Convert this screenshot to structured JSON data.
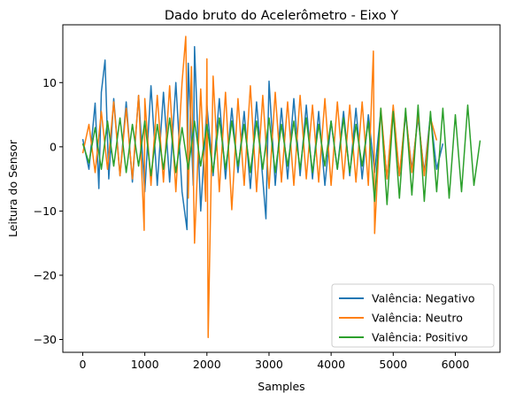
{
  "chart_data": {
    "type": "line",
    "title": "Dado bruto do Acelerômetro - Eixo Y",
    "xlabel": "Samples",
    "ylabel": "Leitura do Sensor",
    "xlim": [
      -320,
      6720
    ],
    "ylim": [
      -32,
      19
    ],
    "xticks": [
      0,
      1000,
      2000,
      3000,
      4000,
      5000,
      6000
    ],
    "yticks": [
      10,
      0,
      -10,
      -20,
      -30
    ],
    "ytick_labels": [
      "10",
      "0",
      "−10",
      "−20",
      "−30"
    ],
    "grid": false,
    "legend_position": "lower-right",
    "series": [
      {
        "name": "Valência: Negativo",
        "color": "#1f77b4",
        "x": [
          0,
          100,
          200,
          260,
          300,
          360,
          420,
          500,
          600,
          700,
          800,
          900,
          1000,
          1100,
          1200,
          1300,
          1400,
          1500,
          1600,
          1680,
          1700,
          1780,
          1800,
          1900,
          2000,
          2100,
          2200,
          2300,
          2400,
          2500,
          2600,
          2700,
          2800,
          2900,
          2950,
          3000,
          3100,
          3200,
          3300,
          3400,
          3500,
          3600,
          3700,
          3800,
          3900,
          4000,
          4100,
          4200,
          4300,
          4400,
          4500,
          4600,
          4700,
          4800,
          4900,
          5000,
          5100,
          5200,
          5300,
          5400,
          5500,
          5600,
          5700,
          5800
        ],
        "y": [
          1.2,
          -3.5,
          6.8,
          -6.5,
          8.5,
          13.5,
          -5,
          7.5,
          -4.5,
          7,
          -5.5,
          8,
          -7,
          9.5,
          -6,
          8.5,
          -5.5,
          10,
          -7,
          -12.9,
          13,
          -6,
          15.6,
          -10,
          6.5,
          -4.5,
          7.5,
          -5,
          6,
          -4,
          5.5,
          -6.5,
          7,
          -5,
          -11.2,
          10.2,
          -6,
          6,
          -5,
          7.5,
          -4.5,
          6.5,
          -5,
          5.5,
          -6,
          4,
          -3.5,
          5.5,
          -4.5,
          6,
          -5,
          5,
          -4,
          5.5,
          -5,
          6,
          -4.5,
          5,
          -3.5,
          4.5,
          -4,
          5,
          -3.5,
          0.5
        ]
      },
      {
        "name": "Valência: Neutro",
        "color": "#ff7f0e",
        "x": [
          0,
          100,
          200,
          300,
          400,
          500,
          600,
          700,
          800,
          900,
          990,
          1000,
          1100,
          1200,
          1300,
          1400,
          1500,
          1600,
          1660,
          1700,
          1750,
          1800,
          1900,
          1980,
          2000,
          2020,
          2100,
          2200,
          2300,
          2400,
          2500,
          2600,
          2700,
          2800,
          2900,
          3000,
          3100,
          3200,
          3300,
          3400,
          3500,
          3600,
          3700,
          3800,
          3900,
          4000,
          4100,
          4200,
          4300,
          4400,
          4500,
          4600,
          4680,
          4700,
          4800,
          4900,
          5000,
          5100,
          5200,
          5300,
          5400,
          5500,
          5600,
          5700
        ],
        "y": [
          -1,
          3.5,
          -4,
          5.5,
          -3.5,
          7,
          -4.5,
          6,
          -5,
          8,
          -13,
          7.5,
          -6,
          8,
          -5.5,
          9.5,
          -7,
          10,
          17.2,
          -8,
          12.5,
          -15,
          9,
          -8.5,
          13.7,
          -29.7,
          11,
          -7,
          8.5,
          -9.8,
          7.5,
          -6,
          9.5,
          -7,
          8,
          -6.5,
          8.5,
          -5.5,
          7,
          -6,
          8,
          -5,
          6.5,
          -5.5,
          7.5,
          -6,
          7,
          -5,
          6.5,
          -5.5,
          7,
          -6,
          14.9,
          -13.5,
          6,
          -5,
          6.5,
          -4.5,
          5.5,
          -4,
          5,
          -4.5,
          4.5,
          1
        ]
      },
      {
        "name": "Valência: Positivo",
        "color": "#2ca02c",
        "x": [
          0,
          100,
          200,
          300,
          400,
          500,
          600,
          700,
          800,
          900,
          1000,
          1100,
          1200,
          1300,
          1400,
          1500,
          1600,
          1700,
          1800,
          1900,
          2000,
          2100,
          2200,
          2300,
          2400,
          2500,
          2600,
          2700,
          2800,
          2900,
          3000,
          3100,
          3200,
          3300,
          3400,
          3500,
          3600,
          3700,
          3800,
          3900,
          4000,
          4100,
          4200,
          4300,
          4400,
          4500,
          4600,
          4700,
          4800,
          4900,
          5000,
          5100,
          5200,
          5300,
          5400,
          5500,
          5600,
          5700,
          5800,
          5900,
          6000,
          6100,
          6200,
          6300,
          6400
        ],
        "y": [
          0.5,
          -2.5,
          3,
          -3.5,
          4,
          -3,
          4.5,
          -4,
          3.5,
          -3,
          4,
          -4.5,
          3.5,
          -3.5,
          4.5,
          -4,
          3,
          -3.5,
          4,
          -3,
          3.5,
          -4,
          4.5,
          -3.5,
          4,
          -3,
          3.5,
          -4,
          4,
          -3.5,
          4.5,
          -4,
          3.5,
          -3,
          4,
          -3.5,
          4.5,
          -4,
          3.5,
          -3,
          4,
          -3.5,
          4.5,
          -4,
          3.5,
          -3,
          4,
          -8.5,
          6,
          -9,
          5.5,
          -8,
          6,
          -7.5,
          6.5,
          -8.5,
          5.5,
          -7,
          6,
          -8,
          5,
          -7,
          6.5,
          -6,
          1
        ]
      }
    ]
  }
}
